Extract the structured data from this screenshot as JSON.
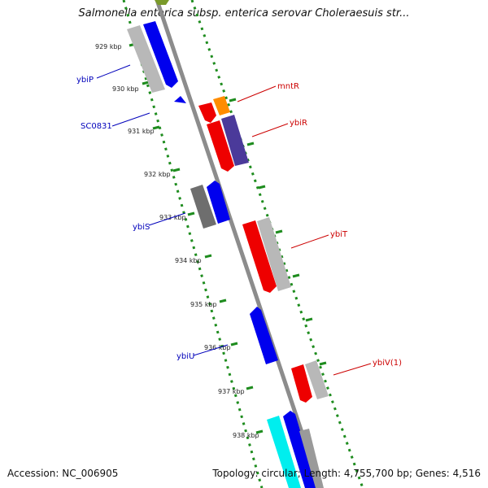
{
  "title": "Salmonella enterica subsp. enterica serovar Choleraesuis str...",
  "footer": {
    "accession": "Accession: NC_006905",
    "summary": "Topology: circular; Length: 4,755,700 bp; Genes: 4,516"
  },
  "colors": {
    "backbone": "#999999",
    "tick_dots": "#1e8c1e",
    "label_blue": "#0000bb",
    "label_red": "#cc0000"
  },
  "kbp_labels": [
    "929 kbp",
    "930 kbp",
    "931 kbp",
    "932 kbp",
    "933 kbp",
    "934 kbp",
    "935 kbp",
    "936 kbp",
    "937 kbp",
    "938 kbp"
  ],
  "gene_labels": [
    {
      "name": "ybiP",
      "side": "left",
      "color": "#0000bb"
    },
    {
      "name": "SC0831",
      "side": "left",
      "color": "#0000bb"
    },
    {
      "name": "ybiS",
      "side": "left",
      "color": "#0000bb"
    },
    {
      "name": "ybiU",
      "side": "left",
      "color": "#0000bb"
    },
    {
      "name": "mntR",
      "side": "right",
      "color": "#cc0000"
    },
    {
      "name": "ybiR",
      "side": "right",
      "color": "#cc0000"
    },
    {
      "name": "ybiT",
      "side": "right",
      "color": "#cc0000"
    },
    {
      "name": "ybiV(1)",
      "side": "right",
      "color": "#cc0000"
    }
  ]
}
